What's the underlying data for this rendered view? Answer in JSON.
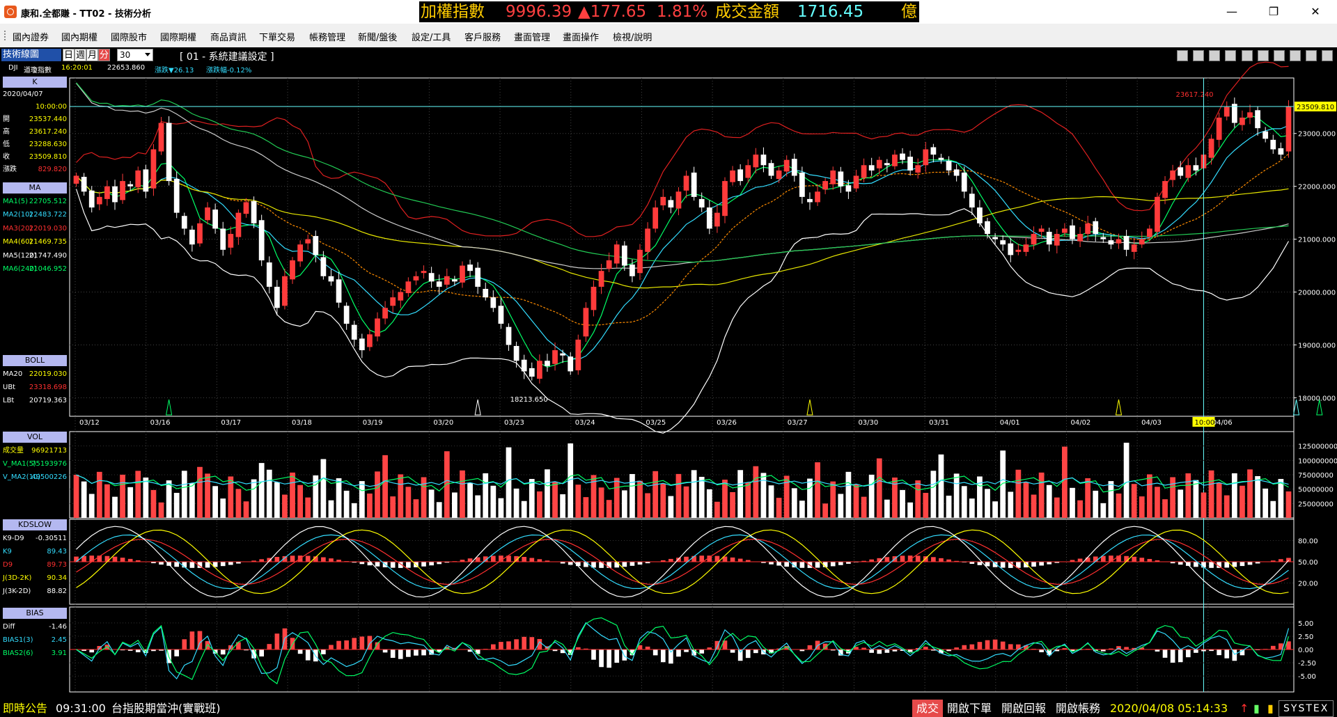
{
  "window": {
    "title": "康和.全都賺 - TT02 - 技術分析",
    "minimize": "—",
    "maximize": "❐",
    "close": "✕"
  },
  "ticker": {
    "name": "加權指數",
    "price": "9996.39",
    "change": "▲177.65",
    "pct": "1.81%",
    "amount_label": "成交金額",
    "amount": "1716.45",
    "unit": "億"
  },
  "menu": [
    "國內證券",
    "國內期權",
    "國際股市",
    "國際期權",
    "商品資訊",
    "下單交易",
    "帳務管理",
    "新聞/盤後",
    "設定/工具",
    "客戶服務",
    "畫面管理",
    "畫面操作",
    "檢視/說明"
  ],
  "toolbar": {
    "panel_title": "技術線圖",
    "periods": [
      "日",
      "週",
      "月",
      "分"
    ],
    "active_period": "分",
    "interval": "30",
    "setting": "[ 01 - 系統建議設定 ]"
  },
  "quote": {
    "symbol": "DJI",
    "name": "道瓊指數",
    "time": "16:20:01",
    "last": "22653.860",
    "change_label": "漲跌▼26.13",
    "pct_label": "漲跌幅-0.12%"
  },
  "sidebar": {
    "k_head": "K",
    "date": "2020/04/07",
    "time": "10:00:00",
    "ohlc": [
      {
        "label": "開",
        "value": "23537.440",
        "color": "#ffff00"
      },
      {
        "label": "高",
        "value": "23617.240",
        "color": "#ffff00"
      },
      {
        "label": "低",
        "value": "23288.630",
        "color": "#ffff00"
      },
      {
        "label": "收",
        "value": "23509.810",
        "color": "#ffff00"
      },
      {
        "label": "漲跌",
        "value": "829.820",
        "color": "#ff3030"
      }
    ],
    "ma_head": "MA",
    "ma": [
      {
        "label": "MA1(5)",
        "value": "22705.512",
        "color": "#00ff66"
      },
      {
        "label": "MA2(10)",
        "value": "22483.722",
        "color": "#33ddff"
      },
      {
        "label": "MA3(20)",
        "value": "22019.030",
        "color": "#ff3030"
      },
      {
        "label": "MA4(60)",
        "value": "21469.735",
        "color": "#ffff00"
      },
      {
        "label": "MA5(120)",
        "value": "21747.490",
        "color": "#ffffff"
      },
      {
        "label": "MA6(240)",
        "value": "21046.952",
        "color": "#00ff66"
      }
    ],
    "boll_head": "BOLL",
    "boll": [
      {
        "label": "MA20",
        "value": "22019.030",
        "color": "#ffff00"
      },
      {
        "label": "UBt",
        "value": "23318.698",
        "color": "#ff3030"
      },
      {
        "label": "LBt",
        "value": "20719.363",
        "color": "#ffffff"
      }
    ],
    "vol_head": "VOL",
    "vol": [
      {
        "label": "成交量",
        "value": "96921713",
        "color": "#ffff00"
      },
      {
        "label": "V_MA1(5)",
        "value": "75193976",
        "color": "#00ff66"
      },
      {
        "label": "V_MA2(10)",
        "value": "49500226",
        "color": "#33ddff"
      }
    ],
    "kd_head": "KDSLOW",
    "kd": [
      {
        "label": "K9-D9",
        "value": "-0.30511",
        "color": "#ffffff"
      },
      {
        "label": "K9",
        "value": "89.43",
        "color": "#33ddff"
      },
      {
        "label": "D9",
        "value": "89.73",
        "color": "#ff3030"
      },
      {
        "label": "J(3D-2K)",
        "value": "90.34",
        "color": "#ffff00"
      },
      {
        "label": "J(3K-2D)",
        "value": "88.82",
        "color": "#ffffff"
      }
    ],
    "bias_head": "BIAS",
    "bias": [
      {
        "label": "Diff",
        "value": "-1.46",
        "color": "#ffffff"
      },
      {
        "label": "BIAS1(3)",
        "value": "2.45",
        "color": "#33ddff"
      },
      {
        "label": "BIAS2(6)",
        "value": "3.91",
        "color": "#00ff66"
      }
    ]
  },
  "chart_data": {
    "type": "candlestick",
    "x_dates": [
      "03/12",
      "03/16",
      "03/17",
      "03/18",
      "03/19",
      "03/20",
      "03/23",
      "03/24",
      "03/25",
      "03/26",
      "03/27",
      "03/30",
      "03/31",
      "04/01",
      "04/02",
      "04/03",
      "04/06"
    ],
    "price_ticks": [
      "23000.000",
      "22000.000",
      "21000.000",
      "20000.000",
      "19000.000",
      "18000.000"
    ],
    "price_range": [
      17650,
      24050
    ],
    "last_price": "23509.810",
    "high_annotation": "23617.240",
    "low_annotation": "18213.650",
    "cursor_time": "10:00",
    "vol_ticks": [
      "125000000",
      "100000000",
      "75000000",
      "50000000",
      "25000000"
    ],
    "vol_range": [
      0,
      150000000
    ],
    "kd_ticks": [
      "80.00",
      "50.00",
      "20.00"
    ],
    "kd_range": [
      -10,
      110
    ],
    "bias_ticks": [
      "5.00",
      "2.50",
      "0.00",
      "-2.50",
      "-5.00"
    ],
    "bias_range": [
      -8,
      8
    ],
    "closes": [
      22200,
      21900,
      21600,
      21800,
      22000,
      21700,
      22100,
      22000,
      22300,
      21900,
      22700,
      23200,
      22100,
      21500,
      21200,
      20900,
      21300,
      21600,
      21200,
      20800,
      21100,
      21500,
      21700,
      21300,
      20600,
      20100,
      19700,
      20300,
      20600,
      20900,
      21000,
      20700,
      20300,
      20200,
      19800,
      19400,
      19100,
      18900,
      19200,
      19500,
      19700,
      19900,
      20000,
      20200,
      20300,
      20400,
      20200,
      20100,
      20300,
      20200,
      20500,
      20400,
      20100,
      19900,
      19700,
      19400,
      19000,
      18700,
      18500,
      18400,
      18700,
      18600,
      18900,
      18800,
      18500,
      19100,
      19700,
      20100,
      20400,
      20600,
      20900,
      20500,
      20300,
      20800,
      21200,
      21600,
      21800,
      21600,
      21900,
      22200,
      21800,
      21600,
      21200,
      21500,
      22100,
      22300,
      22100,
      22400,
      22600,
      22400,
      22200,
      22300,
      22500,
      22200,
      21800,
      21700,
      21900,
      22100,
      22300,
      22000,
      21900,
      22200,
      22400,
      22300,
      22500,
      22400,
      22600,
      22500,
      22300,
      22400,
      22700,
      22600,
      22500,
      22300,
      22200,
      21900,
      21600,
      21300,
      21100,
      21000,
      20900,
      20700,
      20800,
      20900,
      21100,
      21200,
      20900,
      21100,
      21200,
      21000,
      21100,
      21300,
      21100,
      21000,
      20900,
      21000,
      20800,
      20900,
      21000,
      21200,
      21800,
      22100,
      22300,
      22200,
      22400,
      22300,
      22600,
      22900,
      23300,
      23500,
      23200,
      23300,
      23400,
      23100,
      22900,
      22700,
      22600,
      23509
    ]
  },
  "status": {
    "notice_label": "即時公告",
    "notice_time": "09:31:00",
    "notice_text": "台指股期當沖(實戰班)",
    "btn_active": "成交",
    "btn_order": "開啟下單",
    "btn_report": "開啟回報",
    "btn_account": "開啟帳務",
    "datetime": "2020/04/08 05:14:33",
    "brand": "SYSTEX"
  }
}
